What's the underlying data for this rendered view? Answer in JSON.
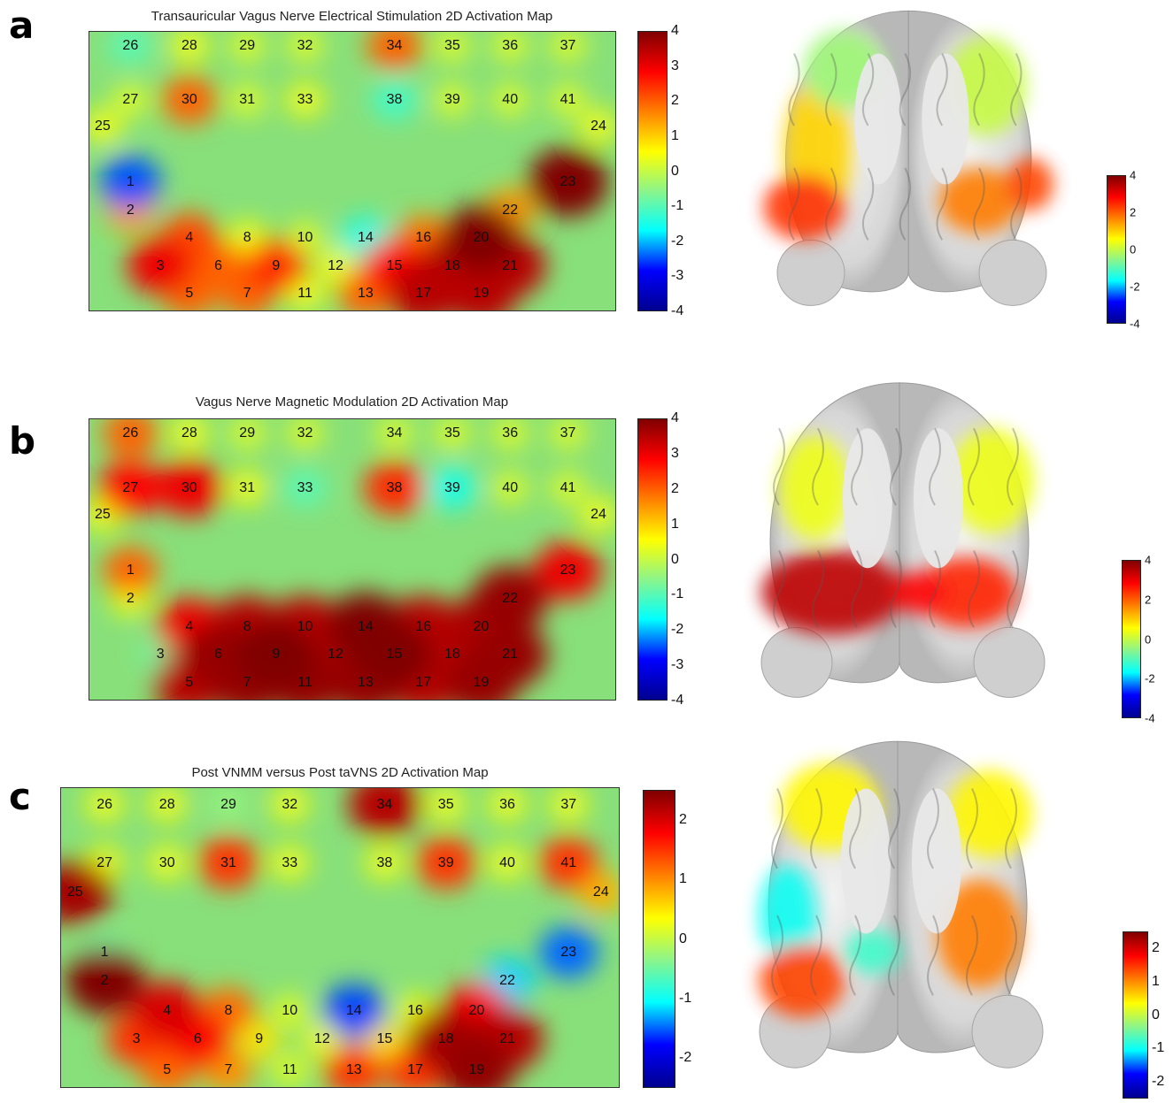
{
  "colors": {
    "jet": [
      "#00008f",
      "#0000ff",
      "#00ffff",
      "#8cf58a",
      "#ffff00",
      "#ff8000",
      "#ff0000",
      "#800000"
    ],
    "background": "#88e07a"
  },
  "chart_data": [
    {
      "type": "heatmap",
      "panel_label": "a",
      "title": "Transauricular Vagus Nerve Electrical Stimulation 2D Activation Map",
      "clim": [
        -4,
        4
      ],
      "colorbar_ticks": [
        "4",
        "3",
        "2",
        "1",
        "0",
        "-1",
        "-2",
        "-3",
        "-4"
      ],
      "brain_colorbar_ticks": [
        "4",
        "2",
        "0",
        "-2",
        "-4"
      ],
      "channels": [
        "1",
        "2",
        "3",
        "4",
        "5",
        "6",
        "7",
        "8",
        "9",
        "10",
        "11",
        "12",
        "13",
        "14",
        "15",
        "16",
        "17",
        "18",
        "19",
        "20",
        "21",
        "22",
        "23",
        "24",
        "25",
        "26",
        "27",
        "28",
        "29",
        "30",
        "31",
        "32",
        "33",
        "34",
        "35",
        "36",
        "37",
        "38",
        "39",
        "40",
        "41"
      ],
      "activation": [
        -2.5,
        1.5,
        3.0,
        2.2,
        2.0,
        2.0,
        2.0,
        0.5,
        2.5,
        0.3,
        0.5,
        0.5,
        2.0,
        -1.5,
        2.8,
        1.8,
        3.5,
        3.5,
        3.5,
        4.0,
        3.5,
        1.5,
        4.2,
        0.5,
        0.5,
        -1.0,
        0.3,
        0.5,
        0.3,
        2.0,
        0.3,
        0.3,
        0.5,
        2.0,
        0.3,
        0.3,
        0.3,
        -1.2,
        0.3,
        0.3,
        0.3
      ]
    },
    {
      "type": "heatmap",
      "panel_label": "b",
      "title": "Vagus Nerve Magnetic Modulation 2D Activation Map",
      "clim": [
        -4,
        4
      ],
      "colorbar_ticks": [
        "4",
        "3",
        "2",
        "1",
        "0",
        "-1",
        "-2",
        "-3",
        "-4"
      ],
      "brain_colorbar_ticks": [
        "4",
        "2",
        "0",
        "-2",
        "-4"
      ],
      "channels": [
        "1",
        "2",
        "3",
        "4",
        "5",
        "6",
        "7",
        "8",
        "9",
        "10",
        "11",
        "12",
        "13",
        "14",
        "15",
        "16",
        "17",
        "18",
        "19",
        "20",
        "21",
        "22",
        "23",
        "24",
        "25",
        "26",
        "27",
        "28",
        "29",
        "30",
        "31",
        "32",
        "33",
        "34",
        "35",
        "36",
        "37",
        "38",
        "39",
        "40",
        "41"
      ],
      "activation": [
        2.0,
        0.5,
        -0.8,
        3.0,
        3.5,
        3.8,
        3.8,
        3.5,
        4.4,
        3.5,
        3.8,
        3.5,
        3.8,
        4.2,
        4.0,
        3.5,
        3.5,
        3.5,
        3.8,
        3.6,
        3.8,
        3.8,
        3.0,
        0.5,
        0.5,
        2.0,
        2.8,
        0.5,
        0.3,
        3.0,
        0.5,
        0.3,
        -1.0,
        0.3,
        0.3,
        0.3,
        0.3,
        2.5,
        -1.5,
        0.3,
        0.3
      ]
    },
    {
      "type": "heatmap",
      "panel_label": "c",
      "title": "Post VNMM versus Post taVNS 2D Activation Map",
      "clim": [
        -2.5,
        2.5
      ],
      "colorbar_ticks": [
        "2",
        "1",
        "0",
        "-1",
        "-2"
      ],
      "brain_colorbar_ticks": [
        "2",
        "1",
        "0",
        "-1",
        "-2"
      ],
      "channels": [
        "1",
        "2",
        "3",
        "4",
        "5",
        "6",
        "7",
        "8",
        "9",
        "10",
        "11",
        "12",
        "13",
        "14",
        "15",
        "16",
        "17",
        "18",
        "19",
        "20",
        "21",
        "22",
        "23",
        "24",
        "25",
        "26",
        "27",
        "28",
        "29",
        "30",
        "31",
        "32",
        "33",
        "34",
        "35",
        "36",
        "37",
        "38",
        "39",
        "40",
        "41"
      ],
      "activation": [
        -0.5,
        2.5,
        1.5,
        2.0,
        1.2,
        1.8,
        1.0,
        1.2,
        0.5,
        0.2,
        0.2,
        0.3,
        1.5,
        -1.6,
        0.5,
        0.3,
        1.5,
        2.3,
        2.4,
        1.8,
        2.2,
        -1.2,
        -1.5,
        0.8,
        2.3,
        0.3,
        0.3,
        0.3,
        -0.3,
        0.3,
        1.5,
        0.3,
        0.3,
        2.2,
        0.3,
        0.3,
        0.3,
        0.3,
        1.5,
        0.3,
        1.5
      ]
    }
  ]
}
